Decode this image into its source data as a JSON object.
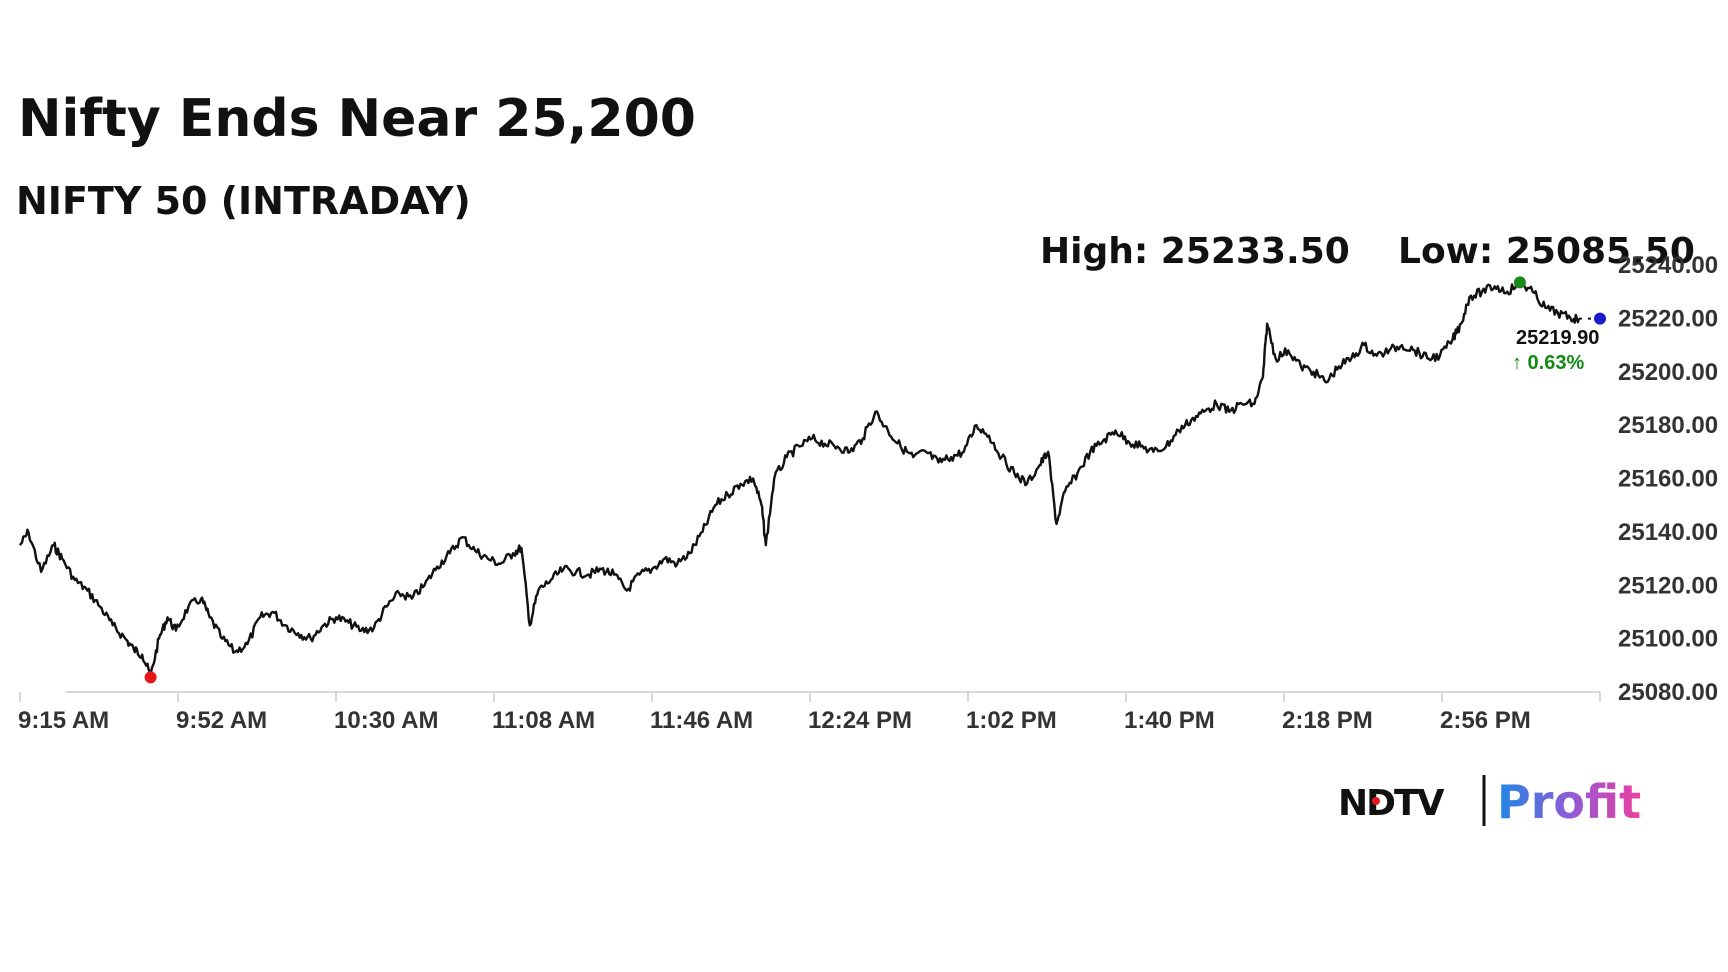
{
  "header": {
    "title": "Nifty Ends Near 25,200",
    "subtitle": "NIFTY 50 (INTRADAY)",
    "high_label": "High: 25233.50",
    "low_label": "Low: 25085.50"
  },
  "last": {
    "value_label": "25219.90",
    "change_label": "↑ 0.63%"
  },
  "brand": {
    "ndtv": "NDTV",
    "profit": "Profit"
  },
  "colors": {
    "line": "#111111",
    "high_marker": "#1a8a1a",
    "low_marker": "#e8161b",
    "last_marker": "#1a1acc",
    "change_up": "#138a13",
    "axis": "#cccccc",
    "brand_red": "#e8161b",
    "profit_gradient": [
      "#1e88e5",
      "#8e5bd6",
      "#ec3fa0"
    ]
  },
  "chart_data": {
    "type": "line",
    "title": "NIFTY 50 (INTRADAY)",
    "xlabel": "",
    "ylabel": "",
    "x_tick_labels": [
      "9:15 AM",
      "9:52 AM",
      "10:30 AM",
      "11:08 AM",
      "11:46 AM",
      "12:24 PM",
      "1:02 PM",
      "1:40 PM",
      "2:18 PM",
      "2:56 PM"
    ],
    "y_tick_labels": [
      "25240.00",
      "25220.00",
      "25200.00",
      "25180.00",
      "25160.00",
      "25140.00",
      "25120.00",
      "25100.00",
      "25080.00"
    ],
    "ylim": [
      25080,
      25240
    ],
    "x_range": [
      "9:15",
      "15:30"
    ],
    "grid": false,
    "series": [
      {
        "points": [
          [
            "9:15",
            25135
          ],
          [
            "9:17",
            25140
          ],
          [
            "9:20",
            25125
          ],
          [
            "9:23",
            25135
          ],
          [
            "9:25",
            25130
          ],
          [
            "9:28",
            25122
          ],
          [
            "9:31",
            25118
          ],
          [
            "9:34",
            25112
          ],
          [
            "9:37",
            25105
          ],
          [
            "9:40",
            25100
          ],
          [
            "9:42",
            25096
          ],
          [
            "9:44",
            25094
          ],
          [
            "9:46",
            25086
          ],
          [
            "9:48",
            25100
          ],
          [
            "9:50",
            25108
          ],
          [
            "9:52",
            25103
          ],
          [
            "9:55",
            25112
          ],
          [
            "9:58",
            25115
          ],
          [
            "10:00",
            25108
          ],
          [
            "10:03",
            25100
          ],
          [
            "10:06",
            25095
          ],
          [
            "10:09",
            25098
          ],
          [
            "10:12",
            25108
          ],
          [
            "10:15",
            25110
          ],
          [
            "10:18",
            25105
          ],
          [
            "10:21",
            25102
          ],
          [
            "10:24",
            25100
          ],
          [
            "10:27",
            25105
          ],
          [
            "10:30",
            25108
          ],
          [
            "10:33",
            25106
          ],
          [
            "10:36",
            25103
          ],
          [
            "10:39",
            25104
          ],
          [
            "10:42",
            25112
          ],
          [
            "10:45",
            25117
          ],
          [
            "10:48",
            25115
          ],
          [
            "10:51",
            25120
          ],
          [
            "10:54",
            25127
          ],
          [
            "10:57",
            25132
          ],
          [
            "11:00",
            25138
          ],
          [
            "11:03",
            25133
          ],
          [
            "11:06",
            25130
          ],
          [
            "11:09",
            25128
          ],
          [
            "11:12",
            25132
          ],
          [
            "11:14",
            25134
          ],
          [
            "11:16",
            25105
          ],
          [
            "11:18",
            25118
          ],
          [
            "11:21",
            25122
          ],
          [
            "11:24",
            25126
          ],
          [
            "11:27",
            25125
          ],
          [
            "11:30",
            25124
          ],
          [
            "11:33",
            25126
          ],
          [
            "11:36",
            25124
          ],
          [
            "11:39",
            25118
          ],
          [
            "11:42",
            25124
          ],
          [
            "11:45",
            25126
          ],
          [
            "11:48",
            25130
          ],
          [
            "11:51",
            25128
          ],
          [
            "11:54",
            25132
          ],
          [
            "11:57",
            25140
          ],
          [
            "12:00",
            25150
          ],
          [
            "12:03",
            25154
          ],
          [
            "12:06",
            25158
          ],
          [
            "12:09",
            25160
          ],
          [
            "12:11",
            25150
          ],
          [
            "12:12",
            25135
          ],
          [
            "12:14",
            25160
          ],
          [
            "12:17",
            25168
          ],
          [
            "12:20",
            25172
          ],
          [
            "12:23",
            25175
          ],
          [
            "12:26",
            25173
          ],
          [
            "12:29",
            25172
          ],
          [
            "12:32",
            25170
          ],
          [
            "12:35",
            25175
          ],
          [
            "12:38",
            25185
          ],
          [
            "12:41",
            25178
          ],
          [
            "12:44",
            25172
          ],
          [
            "12:47",
            25168
          ],
          [
            "12:50",
            25170
          ],
          [
            "12:53",
            25166
          ],
          [
            "12:56",
            25168
          ],
          [
            "12:59",
            25170
          ],
          [
            "13:02",
            25180
          ],
          [
            "13:05",
            25176
          ],
          [
            "13:08",
            25168
          ],
          [
            "13:11",
            25162
          ],
          [
            "13:14",
            25158
          ],
          [
            "13:17",
            25165
          ],
          [
            "13:19",
            25170
          ],
          [
            "13:21",
            25143
          ],
          [
            "13:23",
            25155
          ],
          [
            "13:26",
            25162
          ],
          [
            "13:29",
            25170
          ],
          [
            "13:32",
            25174
          ],
          [
            "13:35",
            25178
          ],
          [
            "13:38",
            25174
          ],
          [
            "13:41",
            25172
          ],
          [
            "13:44",
            25170
          ],
          [
            "13:47",
            25172
          ],
          [
            "13:50",
            25178
          ],
          [
            "13:53",
            25182
          ],
          [
            "13:56",
            25185
          ],
          [
            "13:59",
            25188
          ],
          [
            "14:02",
            25185
          ],
          [
            "14:05",
            25188
          ],
          [
            "14:08",
            25188
          ],
          [
            "14:10",
            25198
          ],
          [
            "14:11",
            25218
          ],
          [
            "14:13",
            25205
          ],
          [
            "14:16",
            25208
          ],
          [
            "14:19",
            25202
          ],
          [
            "14:22",
            25200
          ],
          [
            "14:25",
            25196
          ],
          [
            "14:28",
            25202
          ],
          [
            "14:31",
            25205
          ],
          [
            "14:34",
            25210
          ],
          [
            "14:37",
            25206
          ],
          [
            "14:40",
            25208
          ],
          [
            "14:43",
            25210
          ],
          [
            "14:46",
            25208
          ],
          [
            "14:49",
            25205
          ],
          [
            "14:52",
            25206
          ],
          [
            "14:55",
            25212
          ],
          [
            "14:57",
            25218
          ],
          [
            "14:59",
            25228
          ],
          [
            "15:02",
            25230
          ],
          [
            "15:05",
            25232
          ],
          [
            "15:08",
            25230
          ],
          [
            "15:11",
            25233.5
          ],
          [
            "15:14",
            25230
          ],
          [
            "15:17",
            25224
          ],
          [
            "15:20",
            25222
          ],
          [
            "15:23",
            25220
          ],
          [
            "15:25",
            25219.9
          ]
        ]
      }
    ],
    "annotations": {
      "high": {
        "time": "15:11",
        "value": 25233.5,
        "label": "High: 25233.50"
      },
      "low": {
        "time": "9:46",
        "value": 25085.5,
        "label": "Low: 25085.50"
      },
      "last": {
        "time": "15:30",
        "value": 25219.9,
        "label": "25219.90",
        "change": "↑ 0.63%"
      }
    }
  }
}
